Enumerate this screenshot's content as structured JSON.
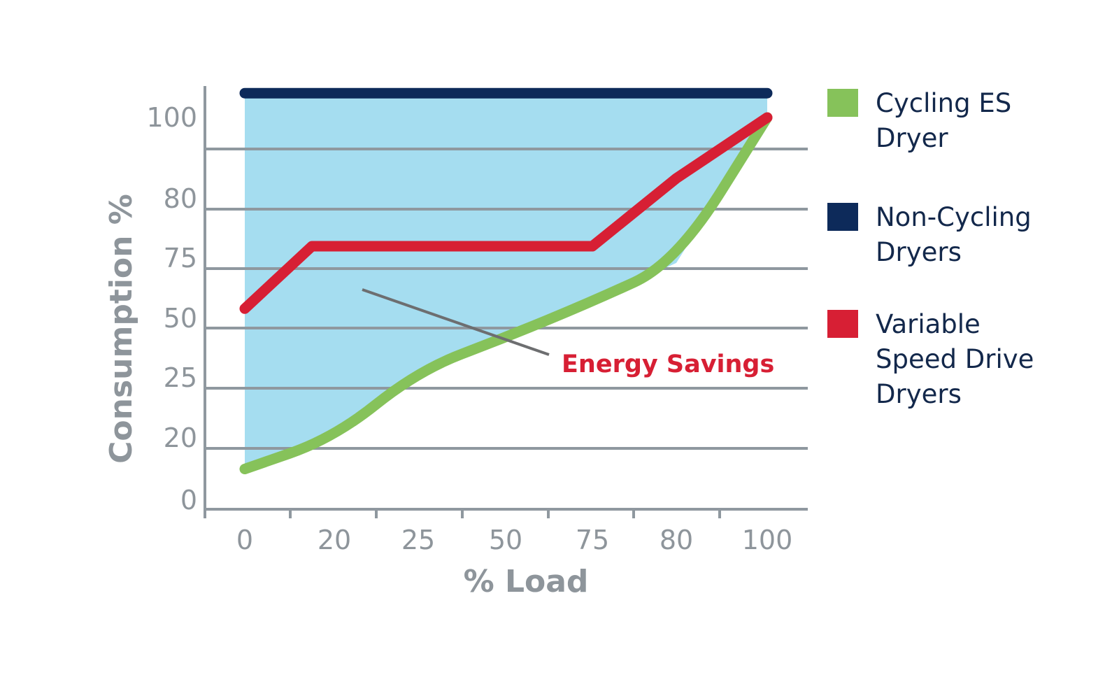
{
  "chart_data": {
    "type": "line",
    "xlabel": "% Load",
    "ylabel": "Consumption %",
    "x_tick_labels": [
      "0",
      "20",
      "25",
      "50",
      "75",
      "80",
      "100"
    ],
    "y_tick_labels": [
      "0",
      "20",
      "25",
      "50",
      "75",
      "80",
      "100"
    ],
    "grid": true,
    "legend_position": "right",
    "series": [
      {
        "name": "Cycling ES Dryer",
        "color": "#86c25a",
        "x": [
          0,
          20,
          25,
          50,
          75,
          80,
          100
        ],
        "y": [
          10,
          20,
          28,
          42,
          57,
          73,
          100
        ]
      },
      {
        "name": "Non-Cycling Dryers",
        "color": "#0d2a5a",
        "x": [
          0,
          100
        ],
        "y": [
          106,
          106
        ]
      },
      {
        "name": "Variable Speed Drive Dryers",
        "color": "#d71f34",
        "x": [
          0,
          15,
          50,
          75,
          80,
          100
        ],
        "y": [
          54,
          76,
          76,
          76,
          85,
          100
        ]
      }
    ],
    "shaded_region": {
      "between": [
        "Non-Cycling Dryers",
        "Cycling ES Dryer"
      ],
      "color": "#a5ddf0"
    },
    "annotation": {
      "text": "Energy Savings",
      "color": "#d71f34"
    }
  }
}
